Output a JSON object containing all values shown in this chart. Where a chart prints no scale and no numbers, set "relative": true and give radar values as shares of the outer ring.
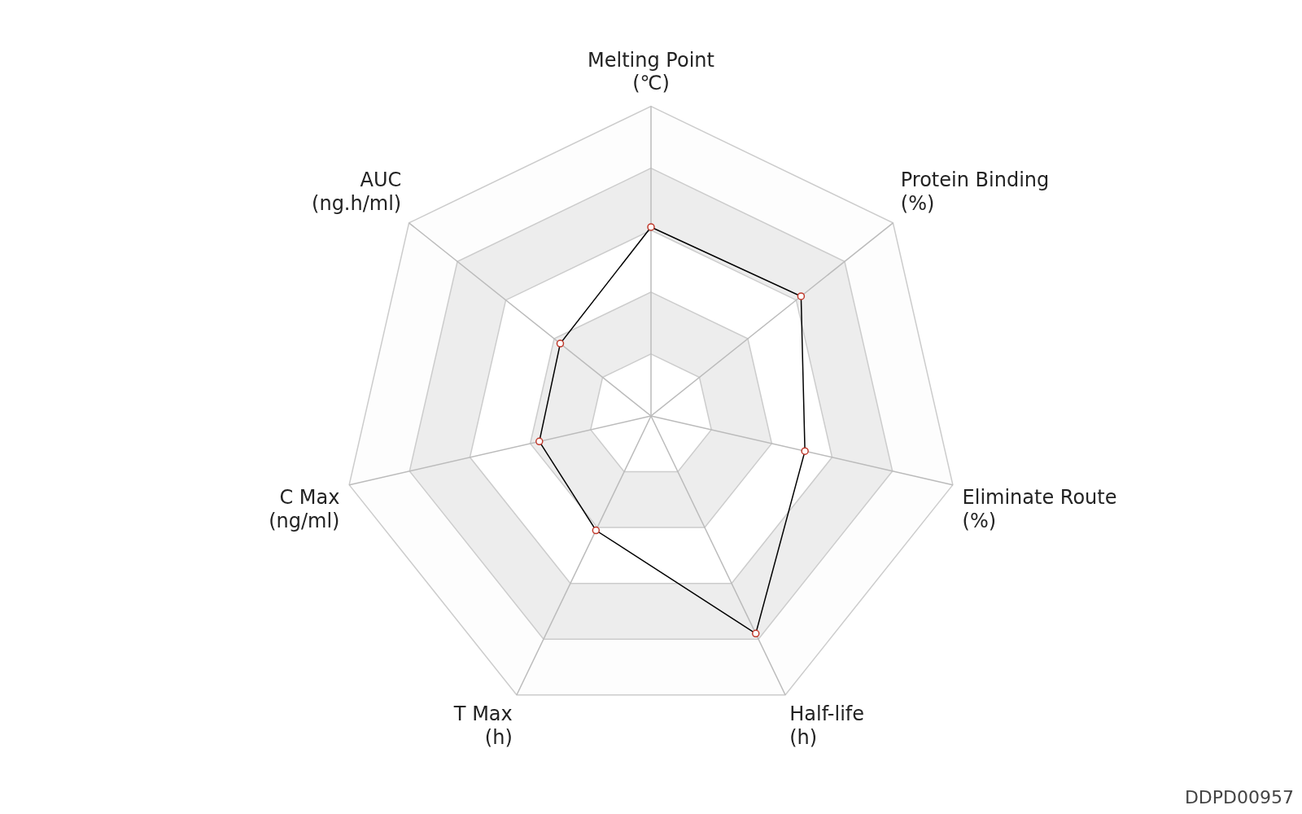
{
  "chart_data": {
    "type": "radar",
    "relative": true,
    "grid": true,
    "marker": "circle",
    "categories": [
      "Melting Point\n(℃)",
      "Protein Binding\n(%)",
      "Eliminate Route\n(%)",
      "Half-life\n(h)",
      "T Max\n(h)",
      "C Max\n(ng/ml)",
      "AUC\n(ng.h/ml)"
    ],
    "series": [
      {
        "color": "#000000",
        "values": [
          0.61,
          0.62,
          0.51,
          0.78,
          0.41,
          0.37,
          0.375
        ]
      }
    ],
    "annotations": [
      "DDPD00957"
    ]
  }
}
